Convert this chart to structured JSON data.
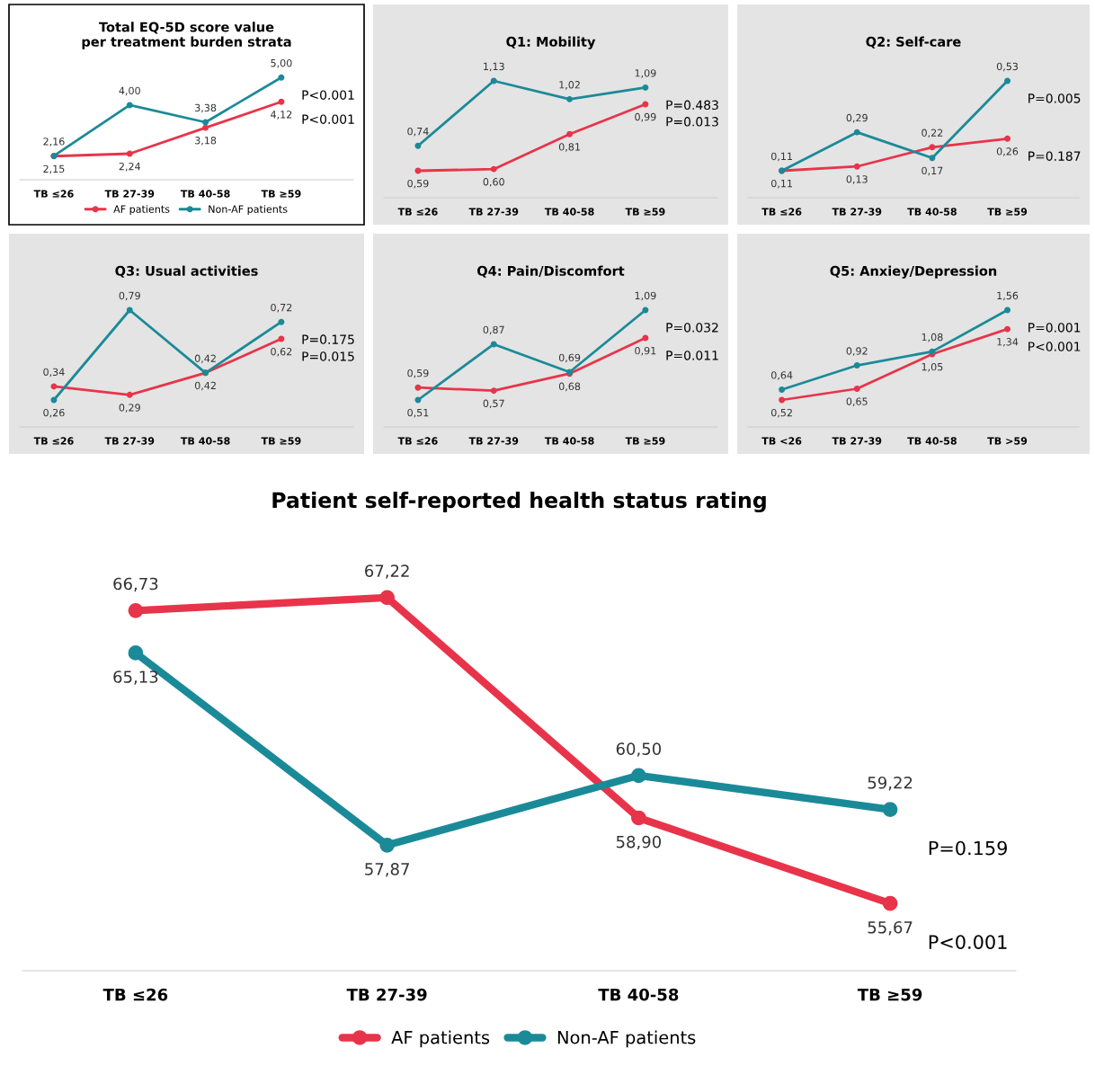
{
  "chart_data": [
    {
      "type": "line",
      "title": "Total EQ-5D score value\nper treatment burden strata",
      "categories": [
        "TB ≤26",
        "TB 27-39",
        "TB 40-58",
        "TB ≥59"
      ],
      "marker": "circle",
      "tick_labels": "x",
      "legend": "bottom",
      "series": [
        {
          "name": "AF patients",
          "color": "#e8344a",
          "values": [
            2.15,
            2.24,
            3.18,
            4.12
          ],
          "value_labels": [
            "2,15",
            "2,24",
            "3,18",
            "4,12"
          ]
        },
        {
          "name": "Non-AF patients",
          "color": "#1b8a98",
          "values": [
            2.16,
            4.0,
            3.38,
            5.0
          ],
          "value_labels": [
            "2,16",
            "4,00",
            "3,38",
            "5,00"
          ]
        }
      ],
      "annotations": [
        {
          "text": "P<0.001",
          "x": "TB ≥59",
          "y": 5.0
        },
        {
          "text": "P<0.001",
          "x": "TB ≥59",
          "y": 4.12
        }
      ]
    },
    {
      "type": "line",
      "title": "Q1: Mobility",
      "categories": [
        "TB ≤26",
        "TB 27-39",
        "TB 40-58",
        "TB ≥59"
      ],
      "marker": "circle",
      "tick_labels": "x",
      "series": [
        {
          "color": "#e8344a",
          "values": [
            0.59,
            0.6,
            0.81,
            0.99
          ],
          "value_labels": [
            "0,59",
            "0,60",
            "0,81",
            "0,99"
          ]
        },
        {
          "color": "#1b8a98",
          "values": [
            0.74,
            1.13,
            1.02,
            1.09
          ],
          "value_labels": [
            "0,74",
            "1,13",
            "1,02",
            "1,09"
          ]
        }
      ],
      "annotations": [
        {
          "text": "P=0.483",
          "x": "TB ≥59",
          "y": 1.09
        },
        {
          "text": "P=0.013",
          "x": "TB ≥59",
          "y": 0.99
        }
      ]
    },
    {
      "type": "line",
      "title": "Q2: Self-care",
      "categories": [
        "TB ≤26",
        "TB 27-39",
        "TB 40-58",
        "TB ≥59"
      ],
      "marker": "circle",
      "tick_labels": "x",
      "series": [
        {
          "color": "#e8344a",
          "values": [
            0.11,
            0.13,
            0.22,
            0.26
          ],
          "value_labels": [
            "0,11",
            "0,13",
            "0,22",
            "0,26"
          ]
        },
        {
          "color": "#1b8a98",
          "values": [
            0.11,
            0.29,
            0.17,
            0.53
          ],
          "value_labels": [
            "0,11",
            "0,29",
            "0,17",
            "0,53"
          ]
        }
      ],
      "annotations": [
        {
          "text": "P=0.005",
          "x": "TB ≥59",
          "y": 0.53
        },
        {
          "text": "P=0.187",
          "x": "TB ≥59",
          "y": 0.26
        }
      ]
    },
    {
      "type": "line",
      "title": "Q3: Usual activities",
      "categories": [
        "TB ≤26",
        "TB 27-39",
        "TB 40-58",
        "TB ≥59"
      ],
      "marker": "circle",
      "tick_labels": "x",
      "series": [
        {
          "color": "#e8344a",
          "values": [
            0.34,
            0.29,
            0.42,
            0.62
          ],
          "value_labels": [
            "0,34",
            "0,29",
            "0,42",
            "0,62"
          ]
        },
        {
          "color": "#1b8a98",
          "values": [
            0.26,
            0.79,
            0.42,
            0.72
          ],
          "value_labels": [
            "0,26",
            "0,79",
            "0,42",
            "0,72"
          ]
        }
      ],
      "annotations": [
        {
          "text": "P=0.175",
          "x": "TB ≥59",
          "y": 0.72
        },
        {
          "text": "P=0.015",
          "x": "TB ≥59",
          "y": 0.62
        }
      ]
    },
    {
      "type": "line",
      "title": "Q4: Pain/Discomfort",
      "categories": [
        "TB ≤26",
        "TB 27-39",
        "TB 40-58",
        "TB ≥59"
      ],
      "marker": "circle",
      "tick_labels": "x",
      "series": [
        {
          "color": "#e8344a",
          "values": [
            0.59,
            0.57,
            0.68,
            0.91
          ],
          "value_labels": [
            "0,59",
            "0,57",
            "0,68",
            "0,91"
          ]
        },
        {
          "color": "#1b8a98",
          "values": [
            0.51,
            0.87,
            0.69,
            1.09
          ],
          "value_labels": [
            "0,51",
            "0,87",
            "0,69",
            "1,09"
          ]
        }
      ],
      "annotations": [
        {
          "text": "P=0.032",
          "x": "TB ≥59",
          "y": 1.09
        },
        {
          "text": "P=0.011",
          "x": "TB ≥59",
          "y": 0.91
        }
      ]
    },
    {
      "type": "line",
      "title": "Q5: Anxiey/Depression",
      "categories": [
        "TB <26",
        "TB 27-39",
        "TB 40-58",
        "TB >59"
      ],
      "marker": "circle",
      "tick_labels": "x",
      "series": [
        {
          "color": "#e8344a",
          "values": [
            0.52,
            0.65,
            1.05,
            1.34
          ],
          "value_labels": [
            "0,52",
            "0,65",
            "1,05",
            "1,34"
          ]
        },
        {
          "color": "#1b8a98",
          "values": [
            0.64,
            0.92,
            1.08,
            1.56
          ],
          "value_labels": [
            "0,64",
            "0,92",
            "1,08",
            "1,56"
          ]
        }
      ],
      "annotations": [
        {
          "text": "P=0.001",
          "x": "TB >59",
          "y": 1.56
        },
        {
          "text": "P<0.001",
          "x": "TB >59",
          "y": 1.34
        }
      ]
    },
    {
      "type": "line",
      "title": "Patient self-reported health status rating",
      "categories": [
        "TB ≤26",
        "TB 27-39",
        "TB 40-58",
        "TB ≥59"
      ],
      "marker": "circle",
      "tick_labels": "x",
      "legend": "bottom",
      "series": [
        {
          "name": "AF patients",
          "color": "#e8344a",
          "values": [
            66.73,
            67.22,
            58.9,
            55.67
          ],
          "value_labels": [
            "66,73",
            "67,22",
            "58,90",
            "55,67"
          ]
        },
        {
          "name": "Non-AF patients",
          "color": "#1b8a98",
          "values": [
            65.13,
            57.87,
            60.5,
            59.22
          ],
          "value_labels": [
            "65,13",
            "57,87",
            "60,50",
            "59,22"
          ]
        }
      ],
      "annotations": [
        {
          "text": "P=0.159",
          "x": "TB ≥59",
          "y": 59.22
        },
        {
          "text": "P<0.001",
          "x": "TB ≥59",
          "y": 55.67
        }
      ]
    }
  ]
}
